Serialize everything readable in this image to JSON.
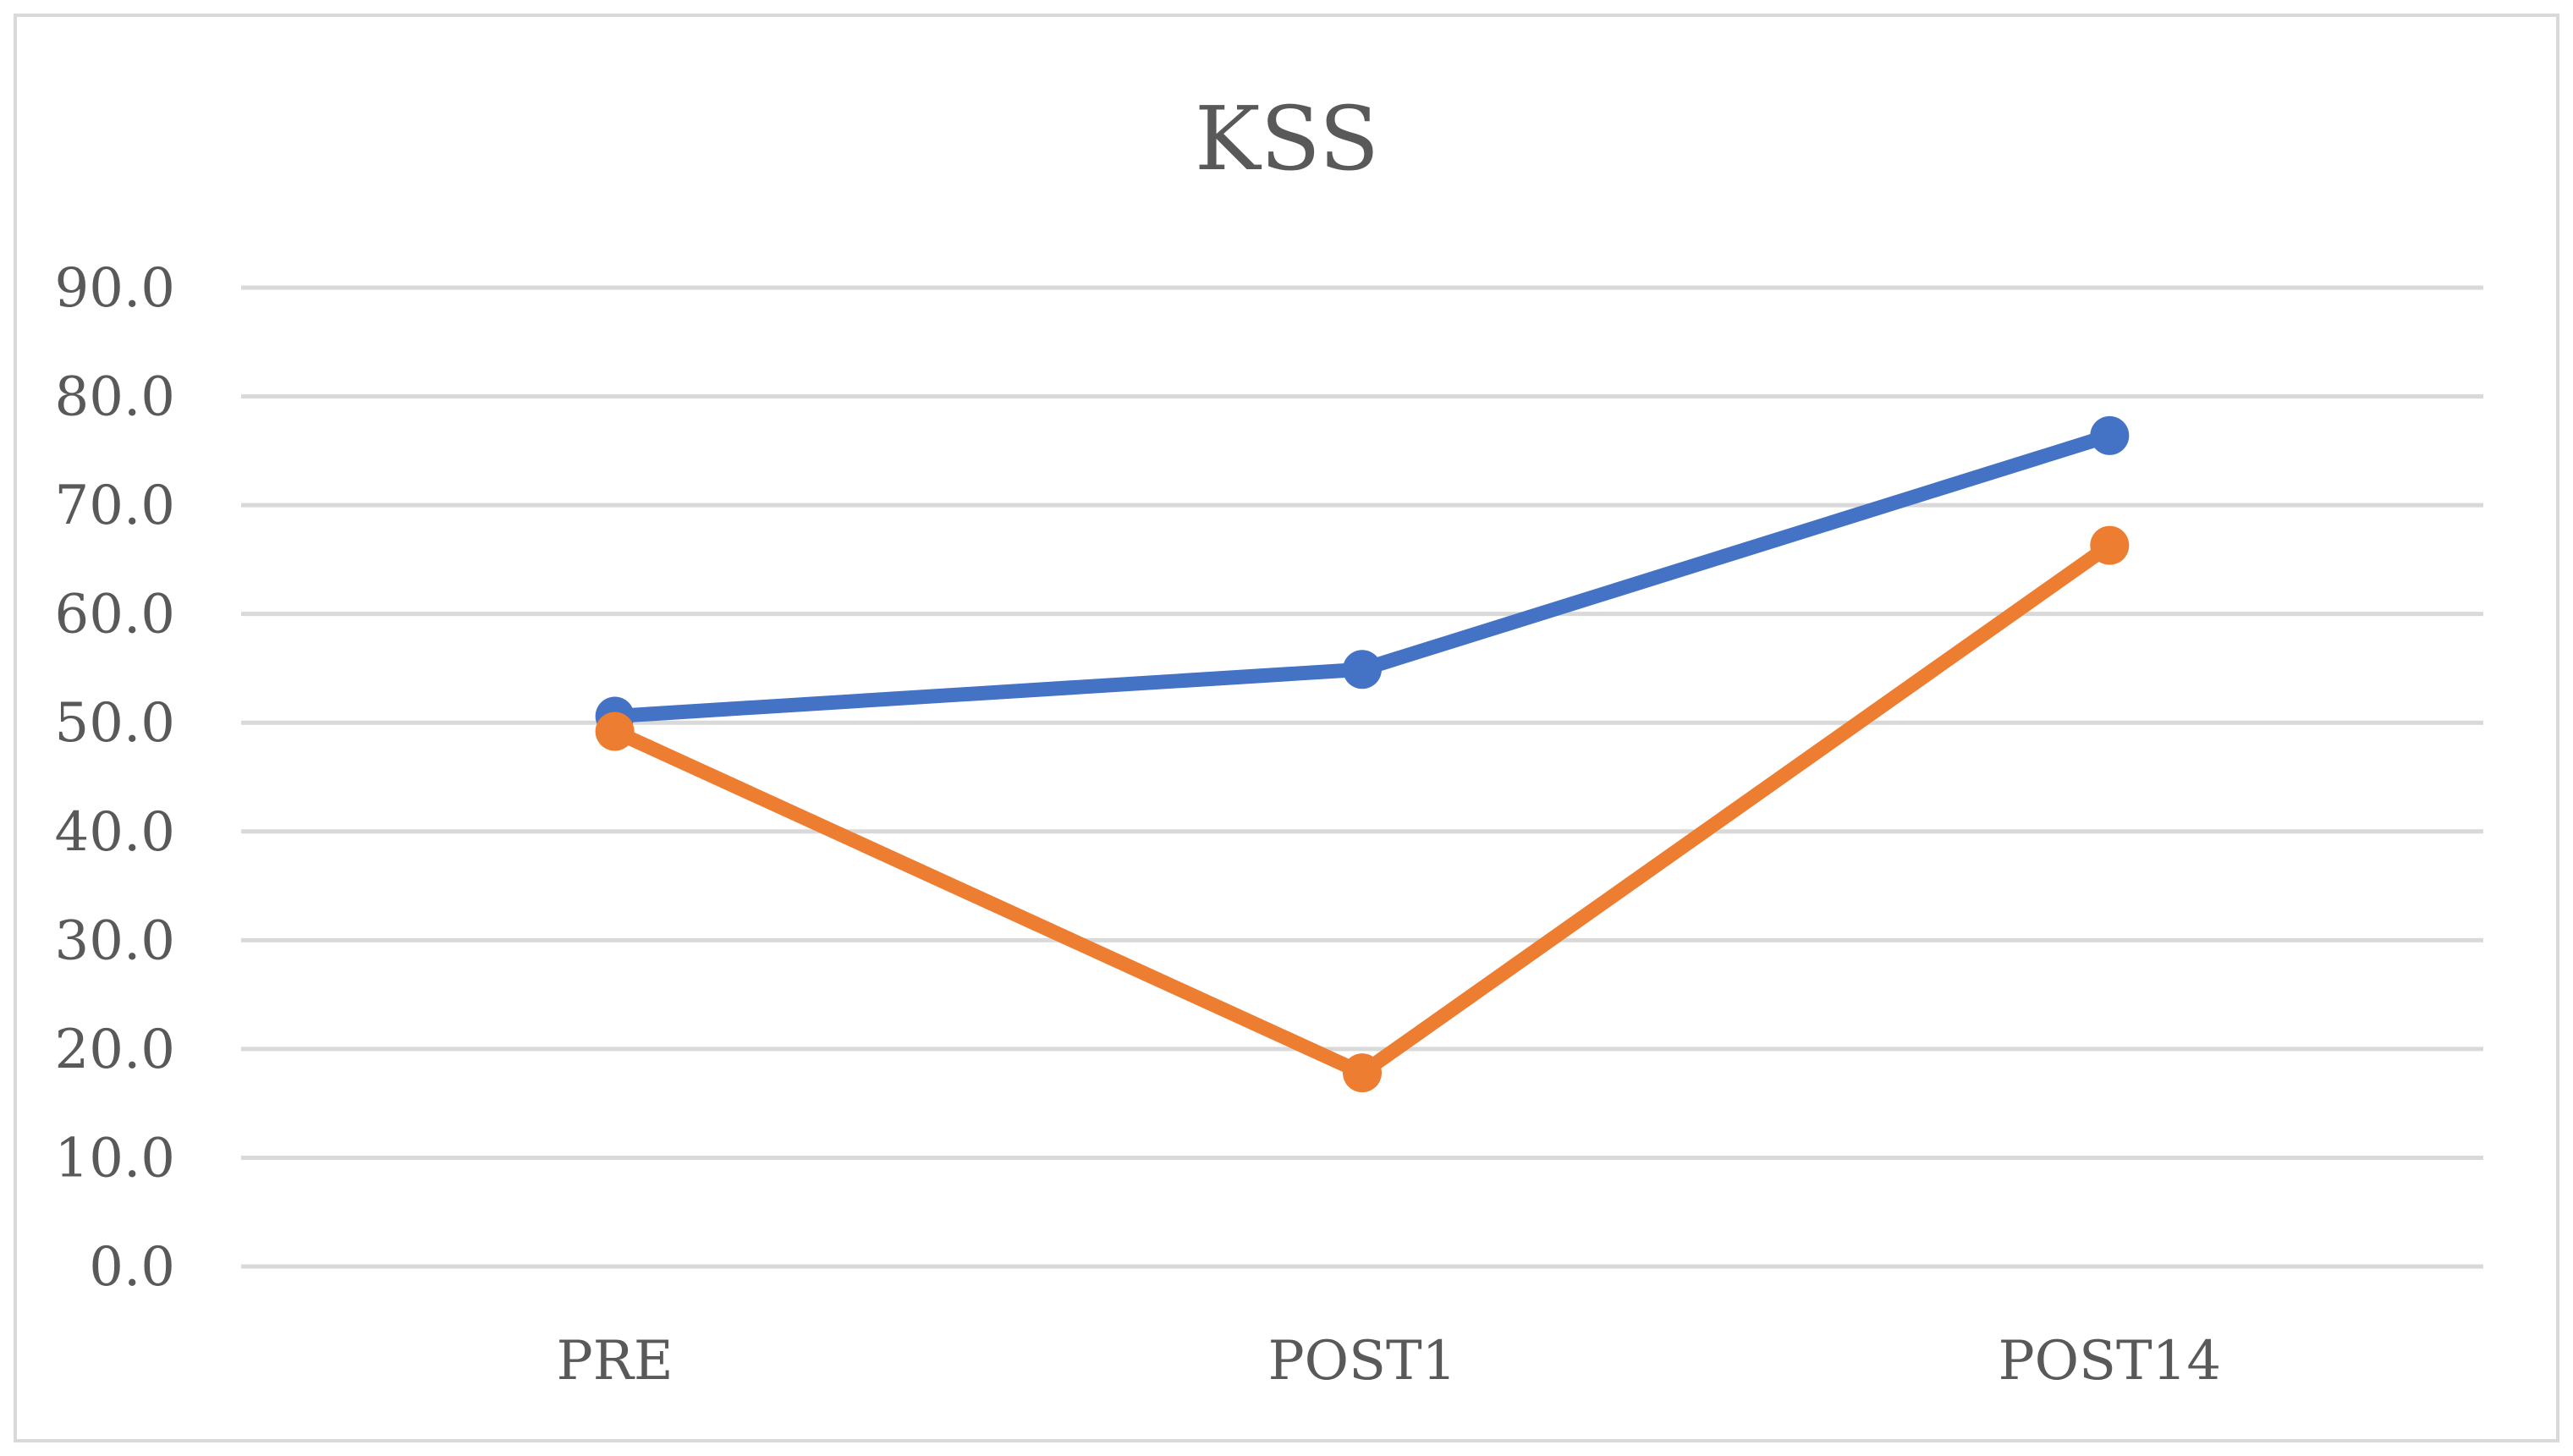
{
  "chart_data": {
    "type": "line",
    "title": "KSS",
    "xlabel": "",
    "ylabel": "",
    "categories": [
      "PRE",
      "POST1",
      "POST14"
    ],
    "y_ticks": [
      "0.0",
      "10.0",
      "20.0",
      "30.0",
      "40.0",
      "50.0",
      "60.0",
      "70.0",
      "80.0",
      "90.0"
    ],
    "ylim": [
      0,
      90
    ],
    "grid": true,
    "legend": "none",
    "series": [
      {
        "values": [
          50.6,
          54.9,
          76.4
        ],
        "color": "#4472C4"
      },
      {
        "values": [
          49.2,
          17.8,
          66.3
        ],
        "color": "#ED7D31"
      }
    ],
    "colors": {
      "grid": "#d9d9d9",
      "frame": "#d9d9d9",
      "text": "#595959"
    }
  }
}
